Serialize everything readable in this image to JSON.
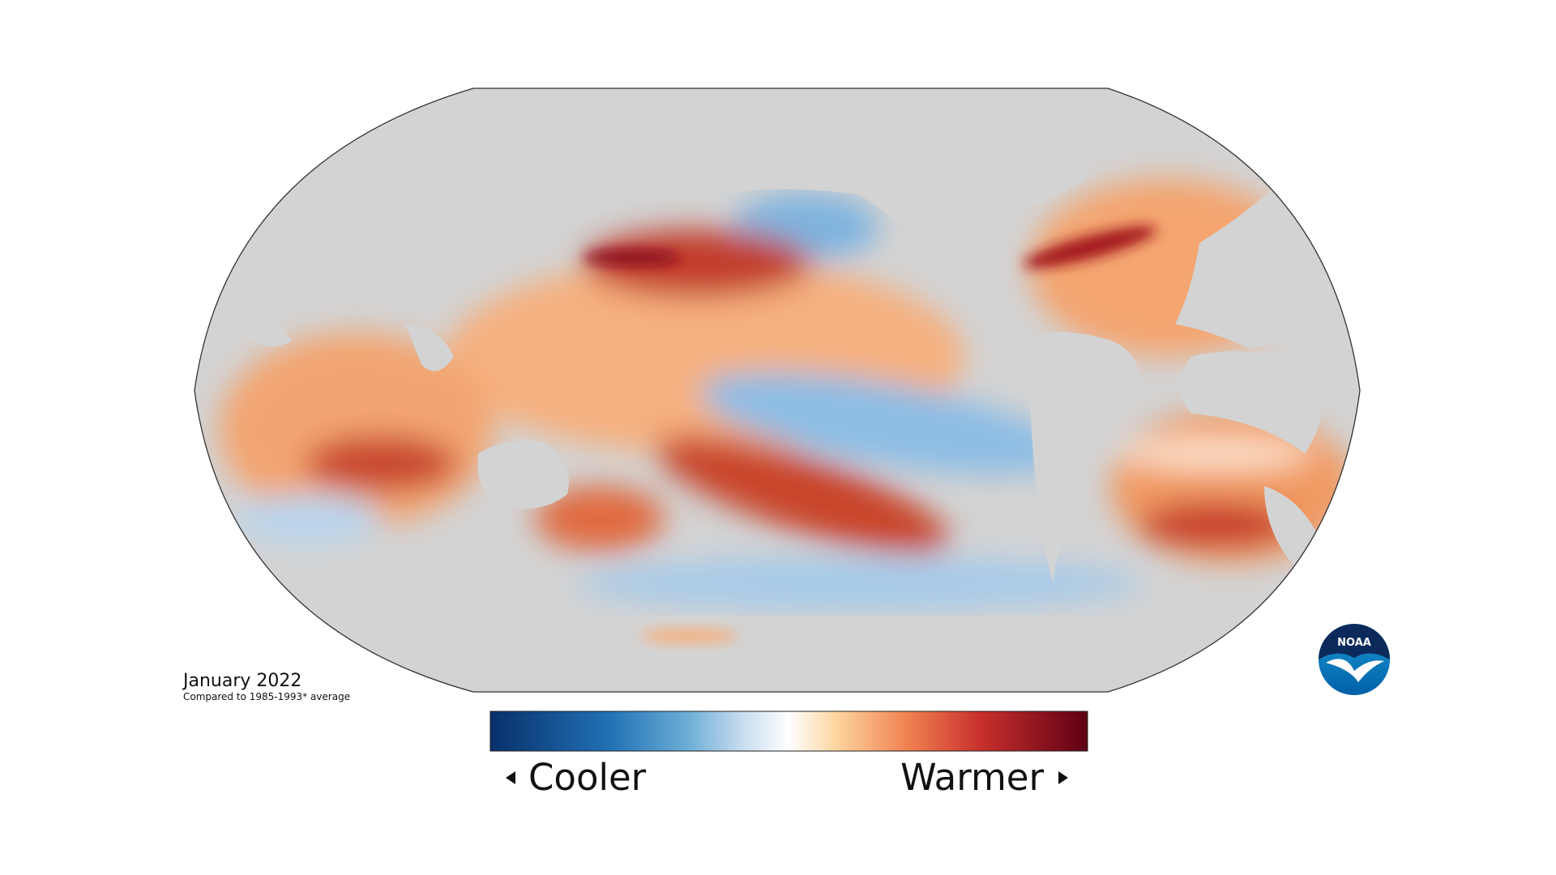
{
  "title": "January 2022",
  "subtitle": "Compared to 1985-1993* average",
  "legend": {
    "low": "Cooler",
    "high": "Warmer"
  },
  "logo": "NOAA"
}
